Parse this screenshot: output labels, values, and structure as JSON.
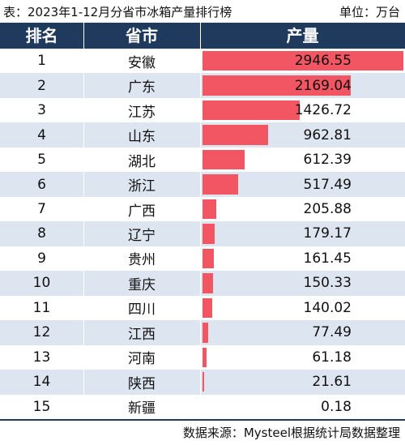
{
  "chart_data": {
    "type": "table",
    "title": "表：2023年1-12月分省市冰箱产量排行榜",
    "unit": "单位：万台",
    "columns": [
      "排名",
      "省市",
      "产量"
    ],
    "rows": [
      {
        "rank": "1",
        "province": "安徽",
        "value": 2946.55,
        "value_label": "2946.55"
      },
      {
        "rank": "2",
        "province": "广东",
        "value": 2169.04,
        "value_label": "2169.04"
      },
      {
        "rank": "3",
        "province": "江苏",
        "value": 1426.72,
        "value_label": "1426.72"
      },
      {
        "rank": "4",
        "province": "山东",
        "value": 962.81,
        "value_label": "962.81"
      },
      {
        "rank": "5",
        "province": "湖北",
        "value": 612.39,
        "value_label": "612.39"
      },
      {
        "rank": "6",
        "province": "浙江",
        "value": 517.49,
        "value_label": "517.49"
      },
      {
        "rank": "7",
        "province": "广西",
        "value": 205.88,
        "value_label": "205.88"
      },
      {
        "rank": "8",
        "province": "辽宁",
        "value": 179.17,
        "value_label": "179.17"
      },
      {
        "rank": "9",
        "province": "贵州",
        "value": 161.45,
        "value_label": "161.45"
      },
      {
        "rank": "10",
        "province": "重庆",
        "value": 150.33,
        "value_label": "150.33"
      },
      {
        "rank": "11",
        "province": "四川",
        "value": 140.02,
        "value_label": "140.02"
      },
      {
        "rank": "12",
        "province": "江西",
        "value": 77.49,
        "value_label": "77.49"
      },
      {
        "rank": "13",
        "province": "河南",
        "value": 61.18,
        "value_label": "61.18"
      },
      {
        "rank": "14",
        "province": "陕西",
        "value": 21.61,
        "value_label": "21.61"
      },
      {
        "rank": "15",
        "province": "新疆",
        "value": 0.18,
        "value_label": "0.18"
      }
    ],
    "source": "数据来源：Mysteel根据统计局数据整理"
  },
  "colors": {
    "header_bg": "#1f3a5c",
    "bar": "#f25663",
    "row_alt": "#dde5f1"
  }
}
